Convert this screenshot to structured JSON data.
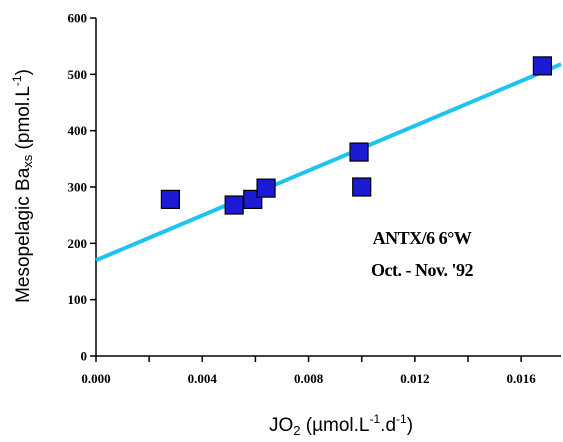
{
  "chart_data": {
    "type": "scatter",
    "xlabel": {
      "main": "JO",
      "sub": "2",
      "rest": " (µmol.L",
      "sup1": "-1",
      "mid": ".d",
      "sup2": "-1",
      "end": ")"
    },
    "ylabel": {
      "main": "Mesopelagic Ba",
      "sub": "xs",
      "rest": " (pmol.L",
      "sup": "-1",
      "end": ")"
    },
    "xlim": [
      0.0,
      0.0175
    ],
    "ylim": [
      0,
      600
    ],
    "x_ticks": [
      "0.000",
      "0.004",
      "0.008",
      "0.012",
      "0.016"
    ],
    "x_tick_values": [
      0.0,
      0.004,
      0.008,
      0.012,
      0.016
    ],
    "y_ticks": [
      "0",
      "100",
      "200",
      "300",
      "400",
      "500",
      "600"
    ],
    "y_tick_values": [
      0,
      100,
      200,
      300,
      400,
      500,
      600
    ],
    "points": [
      {
        "x": 0.0028,
        "y": 278
      },
      {
        "x": 0.0052,
        "y": 268
      },
      {
        "x": 0.0059,
        "y": 278
      },
      {
        "x": 0.0064,
        "y": 298
      },
      {
        "x": 0.0099,
        "y": 362
      },
      {
        "x": 0.01,
        "y": 300
      },
      {
        "x": 0.0168,
        "y": 515
      }
    ],
    "fit_line": {
      "x": [
        0.0,
        0.0175
      ],
      "y": [
        170,
        518
      ]
    },
    "annotation": [
      "ANTX/6 6°W",
      "Oct. - Nov. '92"
    ],
    "colors": {
      "marker_fill": "#1b1bd6",
      "marker_stroke": "#000000",
      "fit_line": "#1ec3ef",
      "axis": "#000000"
    },
    "grid": false
  }
}
